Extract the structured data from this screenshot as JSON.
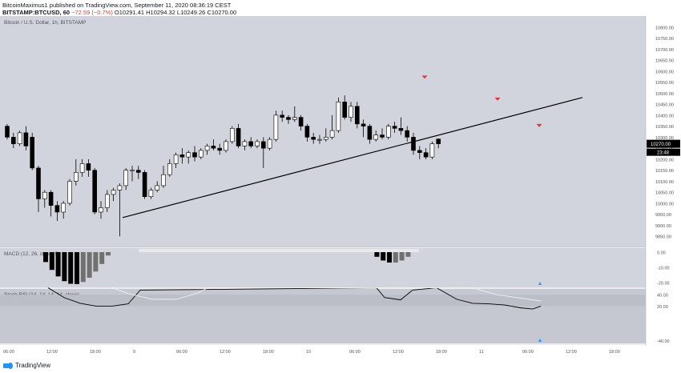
{
  "header": {
    "line1": "BitcoinMaximus1 published on TradingView.com, September 11, 2020 08:36:19 CEST",
    "symbol": "BITSTAMP:BTCUSD, 60",
    "ohlc": "O10342.59 H10342.59 L10270.00 C10270.00",
    "change": "−72.59 (−0.7%)",
    "ohlc2": "O10291.41 H10294.32 L10249.26 C10270.00"
  },
  "chart_title": "Bitcoin / U.S. Dollar, 1h, BITSTAMP",
  "macd_label": "MACD (12, 26, close, 9)",
  "stoch_label": "Stoch RSI (14, 14, 14, 14, close)",
  "footer_brand": "TradingView",
  "colors": {
    "bg": "#d1d4dc",
    "panel_bg": "#c5c8d0",
    "up": "#ffffff",
    "down": "#000000",
    "marker": "#e53935",
    "blue_marker": "#2196f3"
  },
  "chart_data": [
    {
      "type": "candlestick",
      "title": "Bitcoin / U.S. Dollar, 1h, BITSTAMP",
      "ylim": [
        9800,
        10850
      ],
      "y_ticks": [
        9850,
        9900,
        9950,
        10000,
        10050,
        10100,
        10150,
        10200,
        10250,
        10300,
        10350,
        10400,
        10450,
        10500,
        10550,
        10600,
        10650,
        10700,
        10750,
        10800
      ],
      "last_price": "10270.00",
      "countdown": "23:48",
      "x_tick_labels": [
        "06:00",
        "12:00",
        "18:00",
        "9",
        "06:00",
        "12:00",
        "18:00",
        "10",
        "06:00",
        "12:00",
        "18:00",
        "11",
        "06:00",
        "12:00",
        "18:00"
      ],
      "candles": [
        [
          10350,
          10360,
          10290,
          10300
        ],
        [
          10300,
          10320,
          10250,
          10270
        ],
        [
          10270,
          10330,
          10260,
          10320
        ],
        [
          10320,
          10350,
          10240,
          10260
        ],
        [
          10300,
          10320,
          10150,
          10160
        ],
        [
          10160,
          10170,
          9960,
          10020
        ],
        [
          10020,
          10060,
          9980,
          10050
        ],
        [
          10050,
          10060,
          9940,
          9990
        ],
        [
          9990,
          10010,
          9920,
          9960
        ],
        [
          9960,
          10010,
          9930,
          10000
        ],
        [
          10000,
          10110,
          9990,
          10100
        ],
        [
          10100,
          10200,
          10080,
          10140
        ],
        [
          10140,
          10200,
          10120,
          10180
        ],
        [
          10180,
          10200,
          10120,
          10150
        ],
        [
          10150,
          10160,
          9950,
          9960
        ],
        [
          9960,
          10010,
          9930,
          9980
        ],
        [
          9980,
          10060,
          9960,
          10040
        ],
        [
          10040,
          10070,
          10010,
          10060
        ],
        [
          10060,
          10090,
          9850,
          10080
        ],
        [
          10080,
          10160,
          10060,
          10150
        ],
        [
          10150,
          10170,
          10100,
          10150
        ],
        [
          10150,
          10170,
          10110,
          10140
        ],
        [
          10140,
          10150,
          10020,
          10030
        ],
        [
          10030,
          10070,
          10020,
          10060
        ],
        [
          10060,
          10100,
          10050,
          10080
        ],
        [
          10080,
          10170,
          10070,
          10130
        ],
        [
          10130,
          10200,
          10120,
          10180
        ],
        [
          10180,
          10230,
          10160,
          10220
        ],
        [
          10220,
          10250,
          10180,
          10210
        ],
        [
          10210,
          10240,
          10180,
          10230
        ],
        [
          10230,
          10260,
          10190,
          10210
        ],
        [
          10210,
          10250,
          10200,
          10240
        ],
        [
          10240,
          10270,
          10220,
          10260
        ],
        [
          10260,
          10290,
          10240,
          10250
        ],
        [
          10250,
          10270,
          10220,
          10240
        ],
        [
          10240,
          10290,
          10230,
          10280
        ],
        [
          10280,
          10350,
          10270,
          10340
        ],
        [
          10340,
          10360,
          10250,
          10260
        ],
        [
          10260,
          10290,
          10240,
          10280
        ],
        [
          10280,
          10300,
          10250,
          10260
        ],
        [
          10260,
          10290,
          10250,
          10280
        ],
        [
          10280,
          10300,
          10160,
          10250
        ],
        [
          10250,
          10300,
          10240,
          10290
        ],
        [
          10290,
          10420,
          10280,
          10400
        ],
        [
          10400,
          10420,
          10370,
          10390
        ],
        [
          10390,
          10400,
          10360,
          10380
        ],
        [
          10380,
          10440,
          10370,
          10390
        ],
        [
          10390,
          10400,
          10330,
          10350
        ],
        [
          10350,
          10360,
          10280,
          10300
        ],
        [
          10300,
          10320,
          10270,
          10290
        ],
        [
          10290,
          10310,
          10270,
          10290
        ],
        [
          10290,
          10340,
          10280,
          10300
        ],
        [
          10300,
          10400,
          10290,
          10330
        ],
        [
          10330,
          10480,
          10320,
          10460
        ],
        [
          10460,
          10490,
          10380,
          10390
        ],
        [
          10390,
          10460,
          10370,
          10440
        ],
        [
          10440,
          10460,
          10340,
          10360
        ],
        [
          10360,
          10380,
          10300,
          10350
        ],
        [
          10350,
          10360,
          10270,
          10290
        ],
        [
          10290,
          10330,
          10280,
          10310
        ],
        [
          10310,
          10340,
          10290,
          10300
        ],
        [
          10300,
          10360,
          10290,
          10350
        ],
        [
          10350,
          10370,
          10320,
          10340
        ],
        [
          10340,
          10390,
          10310,
          10330
        ],
        [
          10330,
          10350,
          10280,
          10300
        ],
        [
          10300,
          10320,
          10220,
          10240
        ],
        [
          10240,
          10260,
          10200,
          10230
        ],
        [
          10230,
          10250,
          10200,
          10210
        ],
        [
          10210,
          10280,
          10200,
          10270
        ],
        [
          10291.41,
          10294.32,
          10249.26,
          10270
        ]
      ],
      "trendline": [
        [
          9935,
          10480
        ]
      ],
      "markers": "red down-arrows above three swing highs"
    },
    {
      "type": "bar",
      "title": "MACD (12, 26, close, 9)",
      "ylim": [
        -22,
        0
      ],
      "y_ticks": [
        0,
        -10,
        -20
      ]
    },
    {
      "type": "line",
      "title": "Stoch RSI (14, 14, 14, 14, close)",
      "ylim": [
        -45,
        50
      ],
      "y_ticks": [
        40,
        20,
        -40
      ]
    }
  ]
}
